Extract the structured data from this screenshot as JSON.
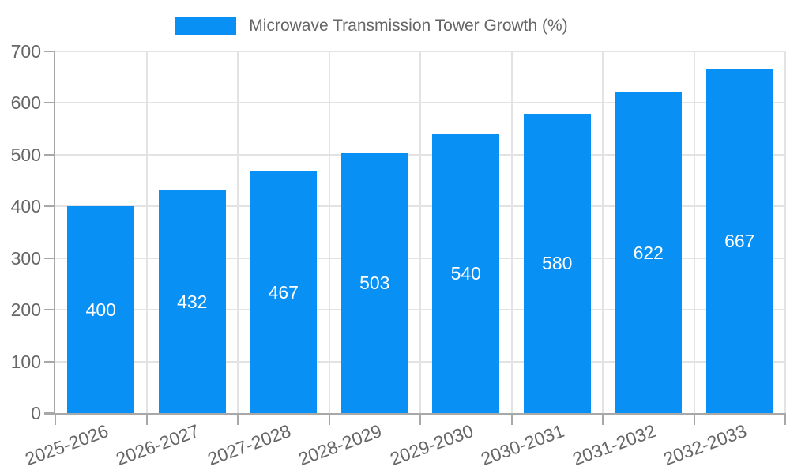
{
  "chart_data": {
    "type": "bar",
    "title": "Microwave Transmission Tower Growth (%)",
    "legend_label": "Microwave Transmission Tower Growth (%)",
    "legend_position": "top",
    "categories": [
      "2025-2026",
      "2026-2027",
      "2027-2028",
      "2028-2029",
      "2029-2030",
      "2030-2031",
      "2031-2032",
      "2032-2033"
    ],
    "values": [
      400,
      432,
      467,
      503,
      540,
      580,
      622,
      667
    ],
    "bar_value_labels": [
      "400",
      "432",
      "467",
      "503",
      "540",
      "580",
      "622",
      "667"
    ],
    "xlabel": "",
    "ylabel": "",
    "ylim": [
      0,
      700
    ],
    "yticks": [
      0,
      100,
      200,
      300,
      400,
      500,
      600,
      700
    ],
    "grid": true,
    "x_label_rotation_deg": -20,
    "colors": {
      "bar": "#0990f5",
      "bar_label_text": "#ffffff",
      "axis_text": "#666666",
      "gridline": "#e3e3e3",
      "axis_line": "#a8a8a8",
      "background": "#ffffff"
    }
  }
}
